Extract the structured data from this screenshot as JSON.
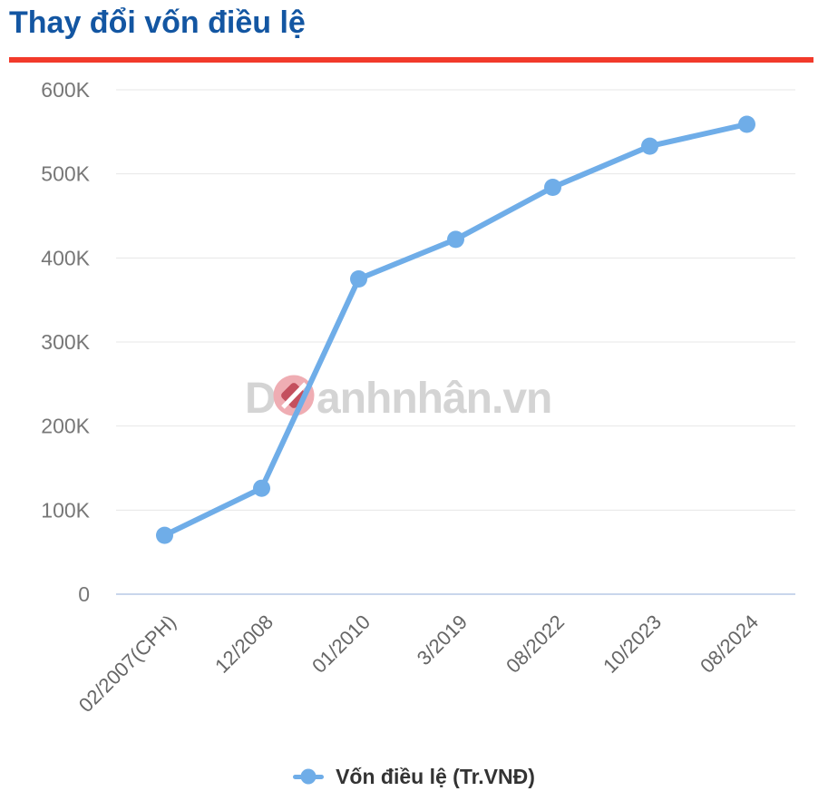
{
  "header": {
    "title": "Thay đổi vốn điều lệ",
    "title_color": "#1356a2",
    "accent_color": "#f23a2b"
  },
  "chart_data": {
    "type": "line",
    "title": "Thay đổi vốn điều lệ",
    "categories": [
      "02/2007(CPH)",
      "12/2008",
      "01/2010",
      "3/2019",
      "08/2022",
      "10/2023",
      "08/2024"
    ],
    "series": [
      {
        "name": "Vốn điều lệ (Tr.VNĐ)",
        "values": [
          70000,
          126000,
          375000,
          422000,
          484000,
          533000,
          559000
        ],
        "color": "#6fade8"
      }
    ],
    "xlabel": "",
    "ylabel": "",
    "ylim": [
      0,
      600000
    ],
    "ytick_step": 100000,
    "ytick_labels": [
      "0",
      "100K",
      "200K",
      "300K",
      "400K",
      "500K",
      "600K"
    ],
    "grid": true,
    "legend_position": "bottom",
    "x_labels_rotation_deg": 45
  },
  "colors": {
    "grid": "#e7e7e7",
    "axis_line": "#c9d6ec",
    "y_tick_label": "#777777",
    "x_tick_label": "#666666",
    "legend_text": "#333333"
  },
  "legend": {
    "label": "Vốn điều lệ (Tr.VNĐ)",
    "marker_color": "#6fade8"
  },
  "watermark": {
    "part1": "D",
    "part2": "anhnhân.vn",
    "text_color": "#d4d4d4",
    "circle_color": "#efadb3",
    "diamond_color": "#c4505e",
    "slash_color": "#ffffff"
  }
}
